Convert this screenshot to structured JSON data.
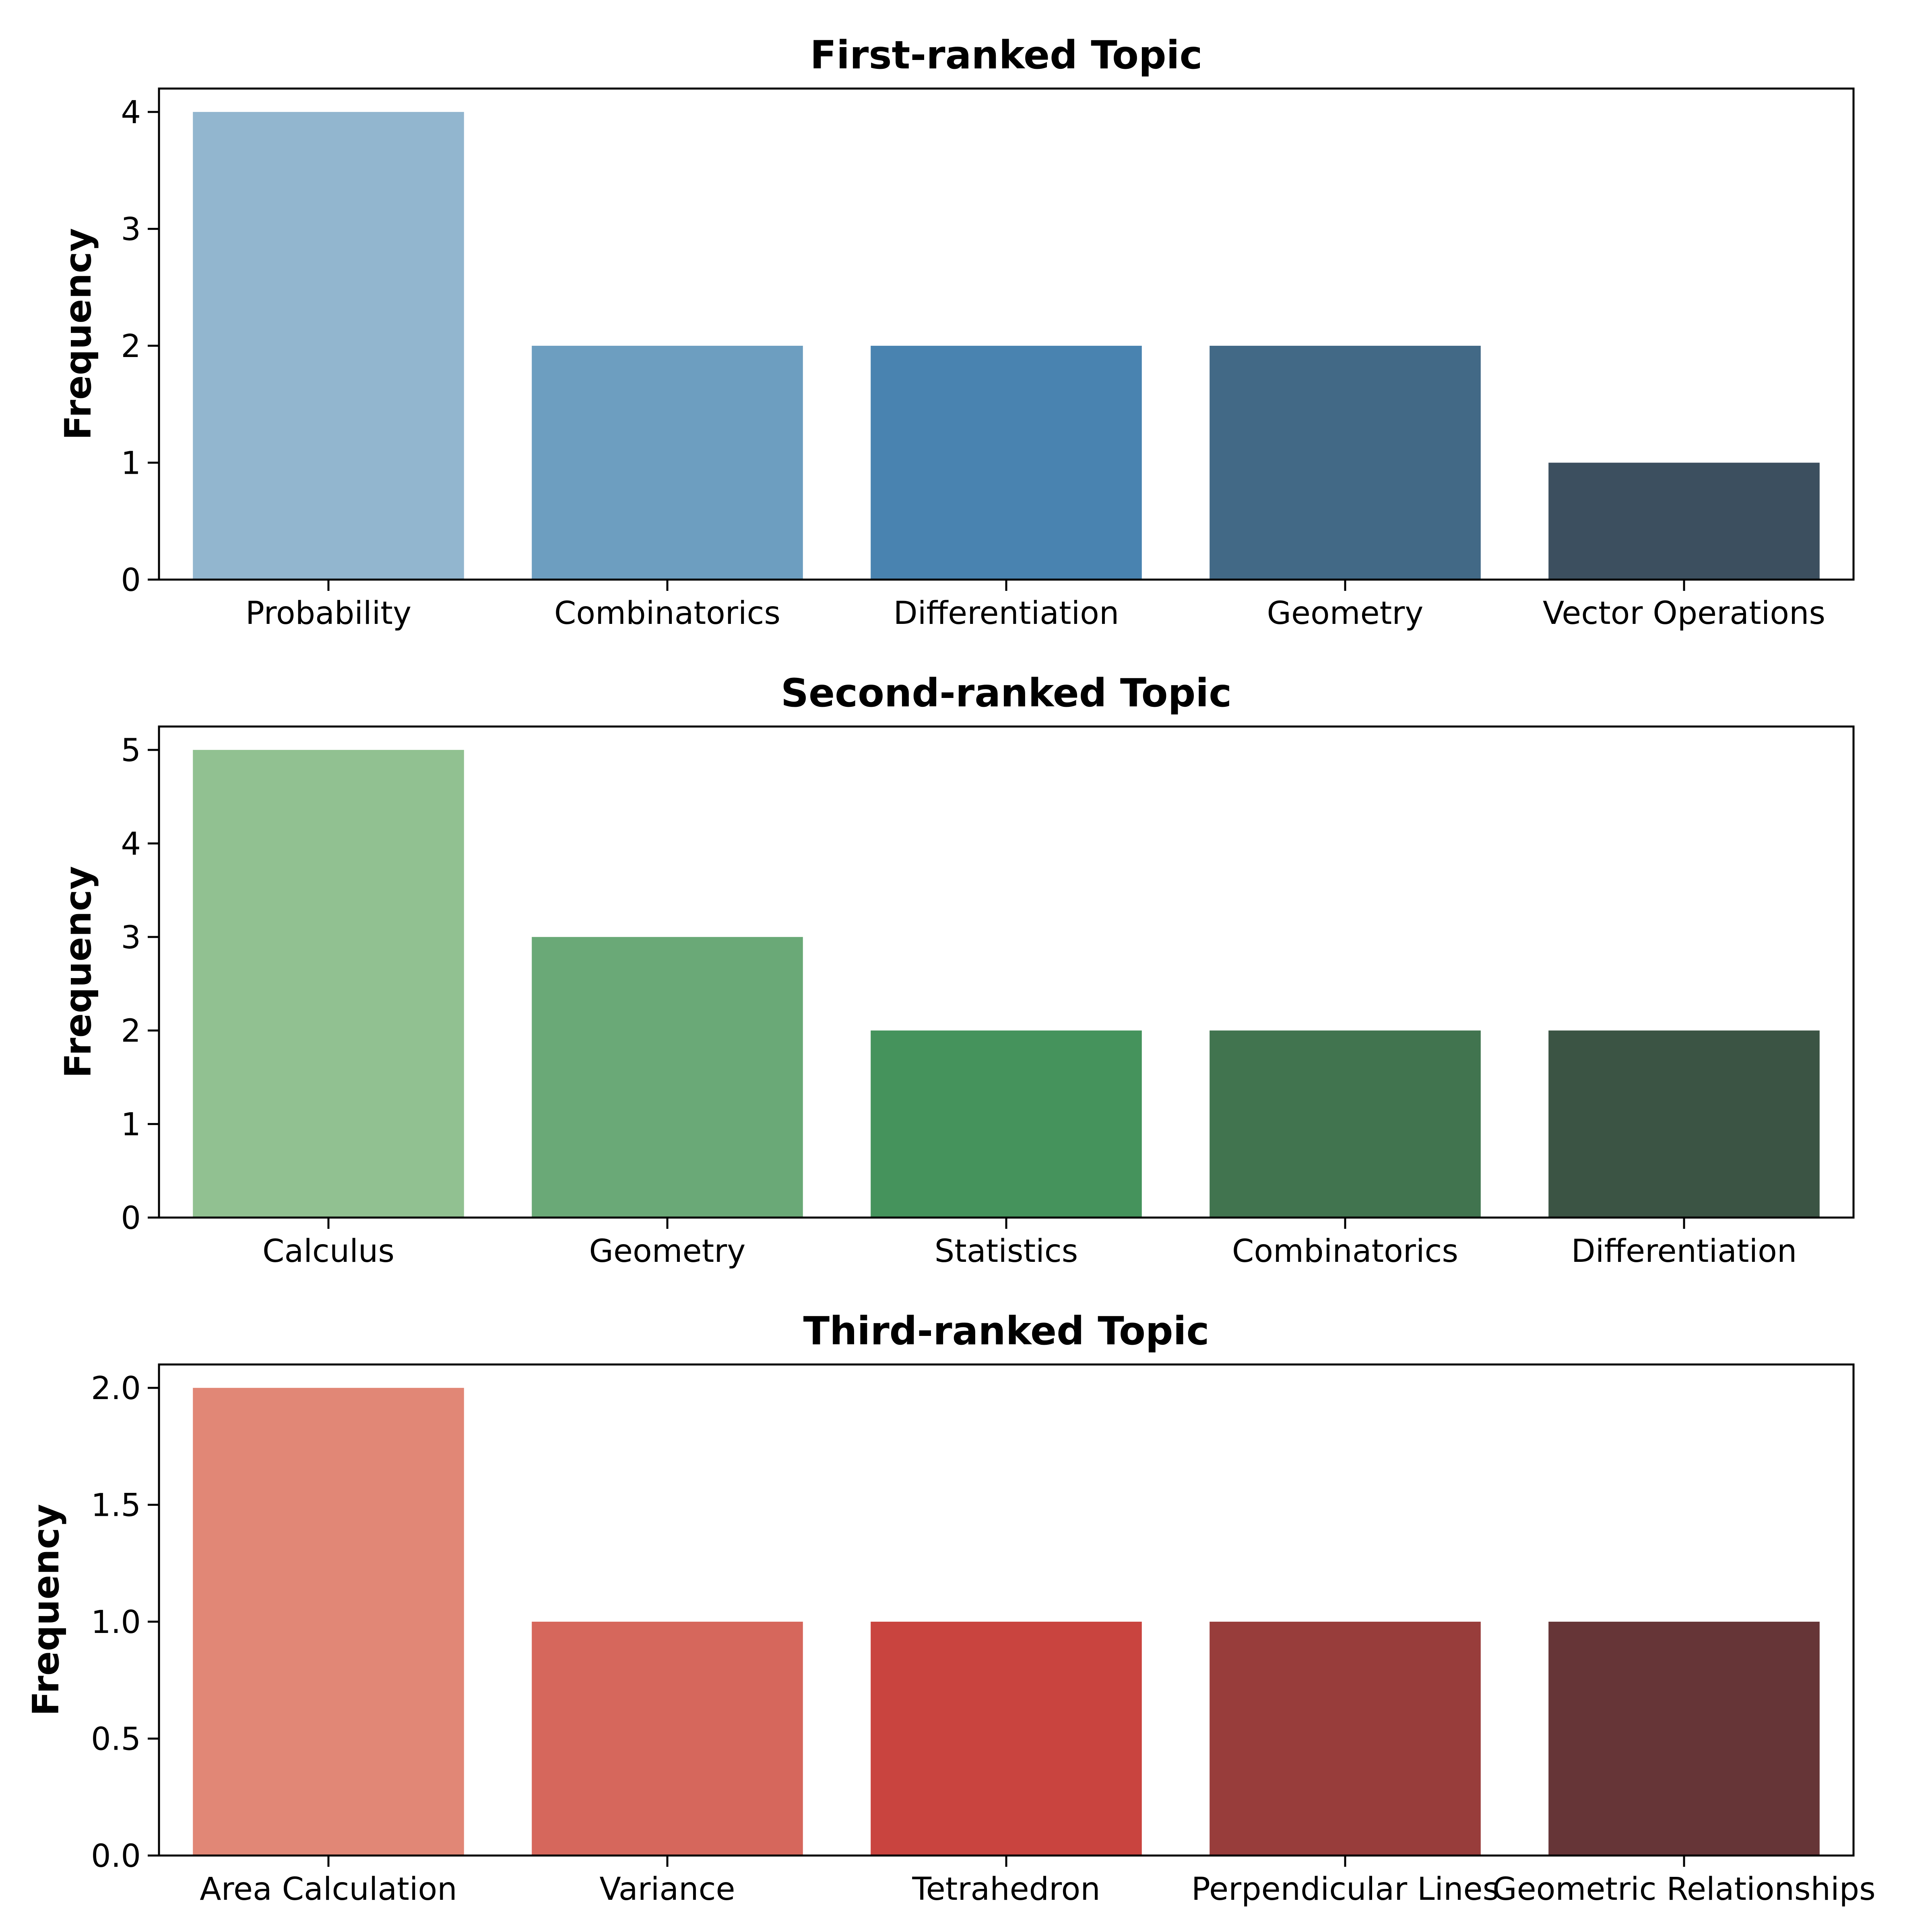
{
  "chart_data": [
    {
      "type": "bar",
      "title": "First-ranked Topic",
      "xlabel": "",
      "ylabel": "Frequency",
      "categories": [
        "Probability",
        "Combinatorics",
        "Differentiation",
        "Geometry",
        "Vector Operations"
      ],
      "values": [
        4,
        2,
        2,
        2,
        1
      ],
      "colors": [
        "#92b6cf",
        "#6d9ec0",
        "#4983b0",
        "#426986",
        "#3c4f5f"
      ],
      "ylim": [
        0,
        4.2
      ],
      "yticks": [
        "0",
        "1",
        "2",
        "3",
        "4"
      ],
      "ytick_values": [
        0,
        1,
        2,
        3,
        4
      ],
      "grid": false
    },
    {
      "type": "bar",
      "title": "Second-ranked Topic",
      "xlabel": "",
      "ylabel": "Frequency",
      "categories": [
        "Calculus",
        "Geometry",
        "Statistics",
        "Combinatorics",
        "Differentiation"
      ],
      "values": [
        5,
        3,
        2,
        2,
        2
      ],
      "colors": [
        "#91c191",
        "#6aa977",
        "#45935c",
        "#41744f",
        "#3b5444"
      ],
      "ylim": [
        0,
        5.25
      ],
      "yticks": [
        "0",
        "1",
        "2",
        "3",
        "4",
        "5"
      ],
      "ytick_values": [
        0,
        1,
        2,
        3,
        4,
        5
      ],
      "grid": false
    },
    {
      "type": "bar",
      "title": "Third-ranked Topic",
      "xlabel": "",
      "ylabel": "Frequency",
      "categories": [
        "Area Calculation",
        "Variance",
        "Tetrahedron",
        "Perpendicular Lines",
        "Geometric Relationships"
      ],
      "values": [
        2,
        1,
        1,
        1,
        1
      ],
      "colors": [
        "#e18776",
        "#d6675c",
        "#c9443f",
        "#983d3b",
        "#663537"
      ],
      "ylim": [
        0,
        2.1
      ],
      "yticks": [
        "0.0",
        "0.5",
        "1.0",
        "1.5",
        "2.0"
      ],
      "ytick_values": [
        0,
        0.5,
        1.0,
        1.5,
        2.0
      ],
      "grid": false
    }
  ]
}
